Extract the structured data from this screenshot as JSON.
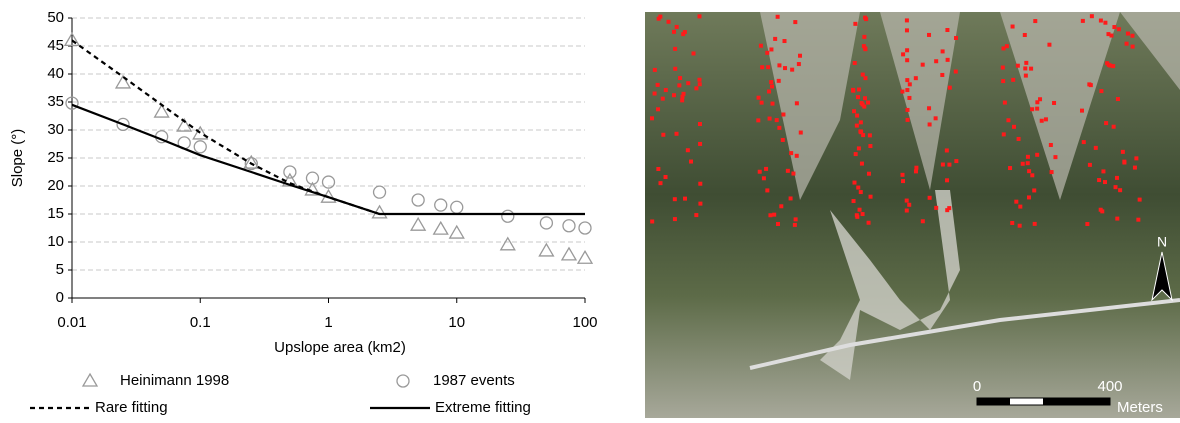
{
  "chart_data": {
    "type": "scatter",
    "xlabel": "Upslope area (km2)",
    "ylabel": "Slope (°)",
    "xscale": "log",
    "xlim": [
      0.01,
      100
    ],
    "xticks": [
      0.01,
      0.1,
      1,
      10,
      100
    ],
    "ylim": [
      0,
      50
    ],
    "yticks": [
      0,
      5,
      10,
      15,
      20,
      25,
      30,
      35,
      40,
      45,
      50
    ],
    "grid": true,
    "series": [
      {
        "name": "Heinimann 1998",
        "kind": "scatter",
        "marker": "triangle",
        "color": "#999999",
        "x": [
          0.01,
          0.025,
          0.05,
          0.075,
          0.1,
          0.25,
          0.5,
          0.75,
          1,
          2.5,
          5,
          7.5,
          10,
          25,
          50,
          75,
          100
        ],
        "values": [
          46,
          38.4,
          33.2,
          30.7,
          29.3,
          24.1,
          20.9,
          19.3,
          18,
          15.2,
          13,
          12.3,
          11.6,
          9.5,
          8.4,
          7.7,
          7.1
        ]
      },
      {
        "name": "1987 events",
        "kind": "scatter",
        "marker": "circle",
        "color": "#999999",
        "x": [
          0.01,
          0.025,
          0.05,
          0.075,
          0.1,
          0.25,
          0.5,
          0.75,
          1,
          2.5,
          5,
          7.5,
          10,
          25,
          50,
          75,
          100
        ],
        "values": [
          34.8,
          31,
          28.8,
          27.7,
          27,
          24,
          22.5,
          21.4,
          20.7,
          18.9,
          17.5,
          16.6,
          16.2,
          14.6,
          13.4,
          12.9,
          12.5
        ]
      },
      {
        "name": "Rare fitting",
        "kind": "line",
        "dash": true,
        "color": "#000000",
        "x": [
          0.01,
          0.025,
          0.05,
          0.1,
          0.25,
          0.5,
          1,
          2.5
        ],
        "values": [
          46,
          39.5,
          34.5,
          29.5,
          24,
          20.5,
          18,
          15
        ]
      },
      {
        "name": "Extreme fitting",
        "kind": "line",
        "dash": false,
        "color": "#000000",
        "x": [
          0.01,
          0.025,
          0.05,
          0.1,
          0.25,
          0.5,
          1,
          2.5,
          100
        ],
        "values": [
          34.5,
          31,
          28.3,
          25.5,
          22.5,
          20.2,
          18,
          15,
          15
        ]
      }
    ]
  },
  "map": {
    "north": "N",
    "scale_start": "0",
    "scale_end": "400",
    "scale_unit": "Meters"
  }
}
